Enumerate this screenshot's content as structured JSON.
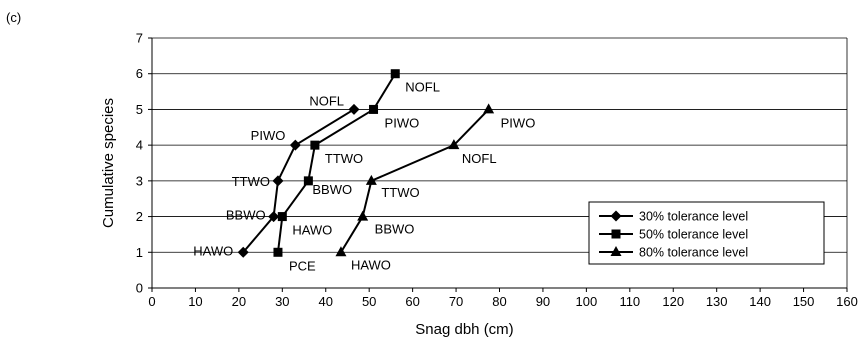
{
  "panel_label": "(c)",
  "chart_data": {
    "type": "line",
    "xlabel": "Snag dbh (cm)",
    "ylabel": "Cumulative species",
    "xlim": [
      0,
      160
    ],
    "ylim": [
      0,
      7
    ],
    "x_ticks": [
      0,
      10,
      20,
      30,
      40,
      50,
      60,
      70,
      80,
      90,
      100,
      110,
      120,
      130,
      140,
      150,
      160
    ],
    "y_ticks": [
      0,
      1,
      2,
      3,
      4,
      5,
      6,
      7
    ],
    "grid": "horizontal",
    "legend_position": "lower-right",
    "series": [
      {
        "name": "30% tolerance level",
        "marker": "diamond",
        "points": [
          {
            "x": 21,
            "y": 1,
            "label": "HAWO"
          },
          {
            "x": 28,
            "y": 2,
            "label": "BBWO"
          },
          {
            "x": 29,
            "y": 3,
            "label": "TTWO"
          },
          {
            "x": 33,
            "y": 4,
            "label": "PIWO"
          },
          {
            "x": 46.5,
            "y": 5,
            "label": "NOFL"
          }
        ]
      },
      {
        "name": "50% tolerance level",
        "marker": "square",
        "points": [
          {
            "x": 29,
            "y": 1,
            "label": "PCE"
          },
          {
            "x": 30,
            "y": 2,
            "label": "HAWO"
          },
          {
            "x": 36,
            "y": 3,
            "label": "BBWO"
          },
          {
            "x": 37.5,
            "y": 4,
            "label": "TTWO"
          },
          {
            "x": 51,
            "y": 5,
            "label": "PIWO"
          },
          {
            "x": 56,
            "y": 6,
            "label": "NOFL"
          }
        ]
      },
      {
        "name": "80% tolerance level",
        "marker": "triangle",
        "points": [
          {
            "x": 43.5,
            "y": 1,
            "label": "HAWO"
          },
          {
            "x": 48.5,
            "y": 2,
            "label": "BBWO"
          },
          {
            "x": 50.5,
            "y": 3,
            "label": "TTWO"
          },
          {
            "x": 69.5,
            "y": 4,
            "label": "NOFL"
          },
          {
            "x": 77.5,
            "y": 5,
            "label": "PIWO"
          }
        ]
      }
    ]
  }
}
